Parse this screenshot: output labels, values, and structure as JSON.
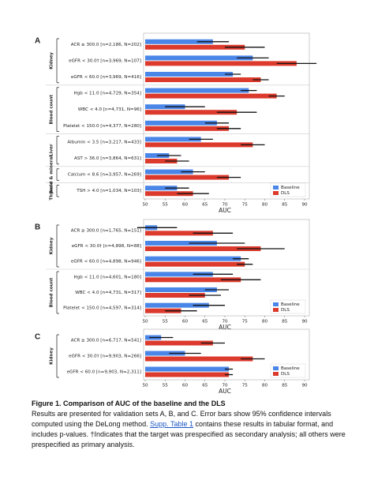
{
  "chart_data": [
    {
      "type": "bar",
      "orientation": "horizontal",
      "panel": "A",
      "xlabel": "AUC",
      "xlim": [
        50,
        90
      ],
      "xticks": [
        50,
        55,
        60,
        65,
        70,
        75,
        80,
        85,
        90
      ],
      "grid": false,
      "legend": "lower right",
      "groups": [
        {
          "name": "Kidney",
          "categories": [
            "ACR ≥ 300.0 [n=2,186, N=202]",
            "eGFR < 30.0† [n=3,969, N=107]",
            "eGFR < 60.0 [n=3,969, N=416]"
          ]
        },
        {
          "name": "Blood count",
          "categories": [
            "Hgb < 11.0 [n=4,729, N=354]",
            "WBC < 4.0 [n=4,731, N=96]",
            "Platelet < 150.0 [n=4,377, N=280]"
          ]
        },
        {
          "name": "Liver",
          "categories": [
            "Albumin < 3.5 [n=3,217, N=433]",
            "AST > 36.0 [n=3,864, N=631]"
          ]
        },
        {
          "name": "Bone & mineral",
          "categories": [
            "Calcium < 8.6 [n=3,957, N=269]"
          ]
        },
        {
          "name": "Thyroid",
          "categories": [
            "TSH > 4.0 [n=1,034, N=103]"
          ]
        }
      ],
      "series": [
        {
          "name": "Baseline",
          "color": "#4a86e8",
          "values": [
            67,
            77,
            72,
            76,
            60,
            68,
            64,
            56,
            62,
            58
          ],
          "errors": [
            4,
            4,
            2,
            2,
            5,
            3,
            3,
            3,
            3,
            3
          ]
        },
        {
          "name": "DLS",
          "color": "#dc3a2c",
          "values": [
            75,
            88,
            79,
            83,
            73,
            71,
            77,
            58,
            71,
            62
          ],
          "errors": [
            5,
            5,
            2,
            2,
            5,
            3,
            3,
            3,
            3,
            4
          ]
        }
      ]
    },
    {
      "type": "bar",
      "orientation": "horizontal",
      "panel": "B",
      "xlabel": "AUC",
      "xlim": [
        50,
        90
      ],
      "xticks": [
        50,
        55,
        60,
        65,
        70,
        75,
        80,
        85,
        90
      ],
      "grid": false,
      "legend": "lower right",
      "groups": [
        {
          "name": "Kidney",
          "categories": [
            "ACR ≥ 300.0 [n=1,765, N=151]",
            "eGFR < 30.0† [n=4,898, N=88]",
            "eGFR < 60.0 [n=4,898, N=946]"
          ]
        },
        {
          "name": "Blood count",
          "categories": [
            "Hgb < 11.0 [n=4,601, N=180]",
            "WBC < 4.0 [n=4,731, N=317]",
            "Platelet < 150.0 [n=4,597, N=314]"
          ]
        }
      ],
      "series": [
        {
          "name": "Baseline",
          "color": "#4a86e8",
          "values": [
            53,
            68,
            74,
            67,
            68,
            66
          ],
          "errors": [
            5,
            7,
            2,
            5,
            3,
            4
          ]
        },
        {
          "name": "DLS",
          "color": "#dc3a2c",
          "values": [
            67,
            79,
            75,
            74,
            65,
            59
          ],
          "errors": [
            5,
            6,
            2,
            5,
            4,
            4
          ]
        }
      ]
    },
    {
      "type": "bar",
      "orientation": "horizontal",
      "panel": "C",
      "xlabel": "AUC",
      "xlim": [
        50,
        90
      ],
      "xticks": [
        50,
        55,
        60,
        65,
        70,
        75,
        80,
        85,
        90
      ],
      "grid": false,
      "legend": "lower right",
      "groups": [
        {
          "name": "Kidney",
          "categories": [
            "ACR ≥ 300.0 [n=6,717, N=541]",
            "eGFR < 30.0† [n=9,903, N=266]",
            "eGFR < 60.0 [n=9,903, N=2,311]"
          ]
        }
      ],
      "series": [
        {
          "name": "Baseline",
          "color": "#4a86e8",
          "values": [
            54,
            60,
            71
          ],
          "errors": [
            3,
            4,
            1
          ]
        },
        {
          "name": "DLS",
          "color": "#dc3a2c",
          "values": [
            67,
            77,
            71
          ],
          "errors": [
            3,
            3,
            1
          ]
        }
      ]
    }
  ],
  "caption": {
    "title": "Figure 1. Comparison of AUC of the baseline and the DLS",
    "text_before_link": "Results are presented for validation sets A, B, and C. Error bars show 95% confidence intervals computed using the DeLong method.",
    "link": "Supp. Table 1",
    "text_after_link": "contains these results in tabular format, and includes p-values. †Indicates that the target was prespecified as secondary analysis; all others were prespecified as primary analysis."
  }
}
